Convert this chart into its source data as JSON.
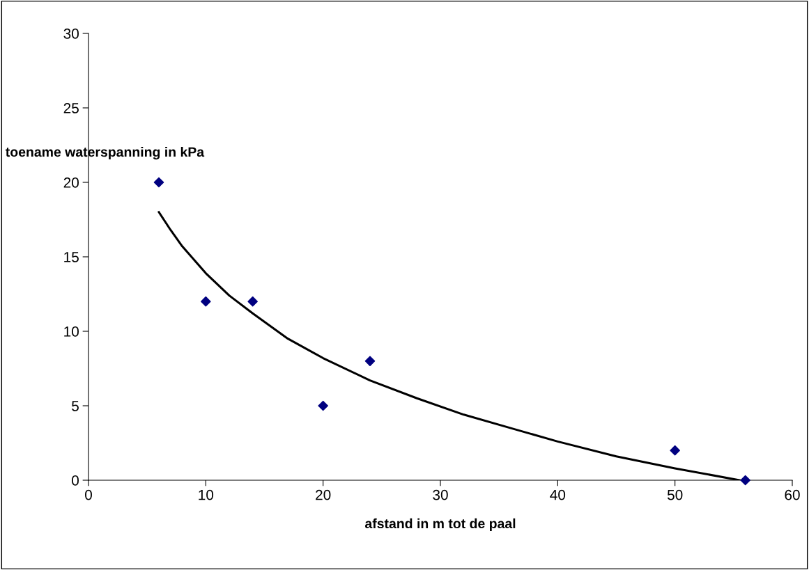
{
  "chart_data": {
    "type": "scatter",
    "xlabel": "afstand in m tot de paal",
    "ylabel": "toename waterspanning in kPa",
    "series": [
      {
        "color": "#000080",
        "marker": "diamond",
        "x": [
          6,
          10,
          14,
          20,
          24,
          50,
          56
        ],
        "values": [
          20,
          12,
          12,
          5,
          8,
          2,
          0
        ]
      },
      {
        "type": "line",
        "color": "#000000",
        "line_style": "solid",
        "marker": "none",
        "x": [
          6,
          7,
          8,
          10,
          12,
          14,
          17,
          20,
          24,
          28,
          32,
          36,
          40,
          45,
          50,
          55.5
        ],
        "values": [
          18,
          16.8,
          15.7,
          13.9,
          12.4,
          11.2,
          9.5,
          8.2,
          6.7,
          5.5,
          4.4,
          3.5,
          2.6,
          1.6,
          0.8,
          0
        ]
      }
    ],
    "xlim": [
      0,
      60
    ],
    "xticks": [
      0,
      10,
      20,
      30,
      40,
      50,
      60
    ],
    "ylim": [
      0,
      30
    ],
    "yticks": [
      0,
      5,
      10,
      15,
      20,
      25,
      30
    ],
    "grid": false,
    "legend": false
  }
}
